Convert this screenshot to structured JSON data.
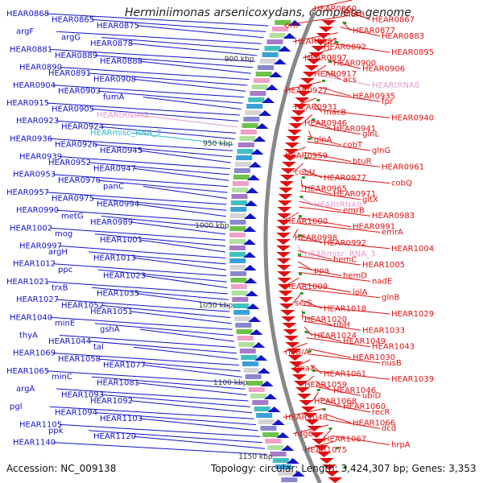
{
  "title": "Herminiimonas arsenicoxydans, complete genome",
  "accession": "Accession: NC_009138",
  "topology": "Topology: circular; Length: 3,424,307 bp; Genes: 3,353",
  "colors": {
    "left_strand": "#1212c8",
    "right_strand": "#e01010",
    "rna": "#29b6c8",
    "trna": "#e59ad0",
    "backbone": "#888888"
  },
  "ticks": [
    "900 kbp",
    "950 kbp",
    "1000 kbp",
    "1050 kbp",
    "1100 kbp",
    "1150 kbp"
  ],
  "left_labels": [
    "HEAR0868",
    "HEAR0865",
    "HEAR0875",
    "argF",
    "argG",
    "HEAR0878",
    "HEAR0881",
    "HEAR0889",
    "HEAR0888",
    "HEAR0890",
    "HEAR0891",
    "HEAR0908",
    "HEAR0904",
    "HEAR0903",
    "fumA",
    "HEAR0915",
    "HEAR0905",
    "HEARtRNA42",
    "HEAR0923",
    "HEAR0924",
    "HEARmisc_RNA_7",
    "HEAR0936",
    "HEAR0926",
    "HEAR0945",
    "HEAR0939",
    "HEAR0952",
    "HEAR0947",
    "HEAR0953",
    "HEAR0976",
    "panC",
    "HEAR0957",
    "HEAR0975",
    "HEAR0994",
    "HEAR0990",
    "metG",
    "HEAR0989",
    "HEAR1002",
    "mog",
    "HEAR1001",
    "HEAR0997",
    "argH",
    "HEAR1013",
    "HEAR1012",
    "ppc",
    "HEAR1023",
    "HEAR1021",
    "trxB",
    "HEAR1035",
    "HEAR1027",
    "HEAR1052",
    "HEAR1051",
    "HEAR1040",
    "minE",
    "gshA",
    "thyA",
    "HEAR1044",
    "tal",
    "HEAR1069",
    "HEAR1058",
    "HEAR1077",
    "HEAR1065",
    "minC",
    "HEAR1081",
    "argA",
    "HEAR1093",
    "HEAR1092",
    "pgl",
    "HEAR1094",
    "HEAR1103",
    "HEAR1105",
    "ppk",
    "HEAR1120",
    "HEAR1140"
  ],
  "right_labels": [
    "HEAR0860",
    "murB",
    "HEAR0867",
    "orn",
    "HEAR0877",
    "HEAR0883",
    "HEAR0887",
    "HEAR0892",
    "HEAR0895",
    "HEAR0897",
    "HEAR0900",
    "HEAR0906",
    "HEAR0917",
    "acs",
    "HEARtRNA8",
    "HEAR0927",
    "HEAR0935",
    "fpr",
    "HEAR0931",
    "macB",
    "HEAR0940",
    "HEAR0946",
    "HEAR0941",
    "glnL",
    "glnA",
    "cobT",
    "glnG",
    "HEAR0959",
    "btuR",
    "HEAR0961",
    "cobU",
    "HEAR0977",
    "cobQ",
    "HEAR0965",
    "HEAR0971",
    "gltX",
    "HEARtRNA9",
    "emrB",
    "HEAR0983",
    "HEAR1000",
    "HEAR0991",
    "emrA",
    "HEAR0998",
    "HEAR0992",
    "HEAR1004",
    "HEARmisc_RNA_3",
    "hemC",
    "HEAR1005",
    "ppa",
    "hemD",
    "nadE",
    "HEAR1009",
    "lolA",
    "glnB",
    "serS",
    "HEAR1018",
    "HEAR1029",
    "HEAR1020",
    "ribH",
    "HEAR1033",
    "HEAR1024",
    "HEAR1049",
    "HEAR1043",
    "ribB/A",
    "HEAR1030",
    "nusB",
    "dnaX",
    "HEAR1061",
    "HEAR1039",
    "HEAR1059",
    "HEAR1046",
    "ubiD",
    "HEAR1068",
    "HEAR1060",
    "recR",
    "HEAR1048",
    "HEAR1066",
    "dcd",
    "rdgC",
    "HEAR1067",
    "hrpA",
    "HEAR1075"
  ]
}
